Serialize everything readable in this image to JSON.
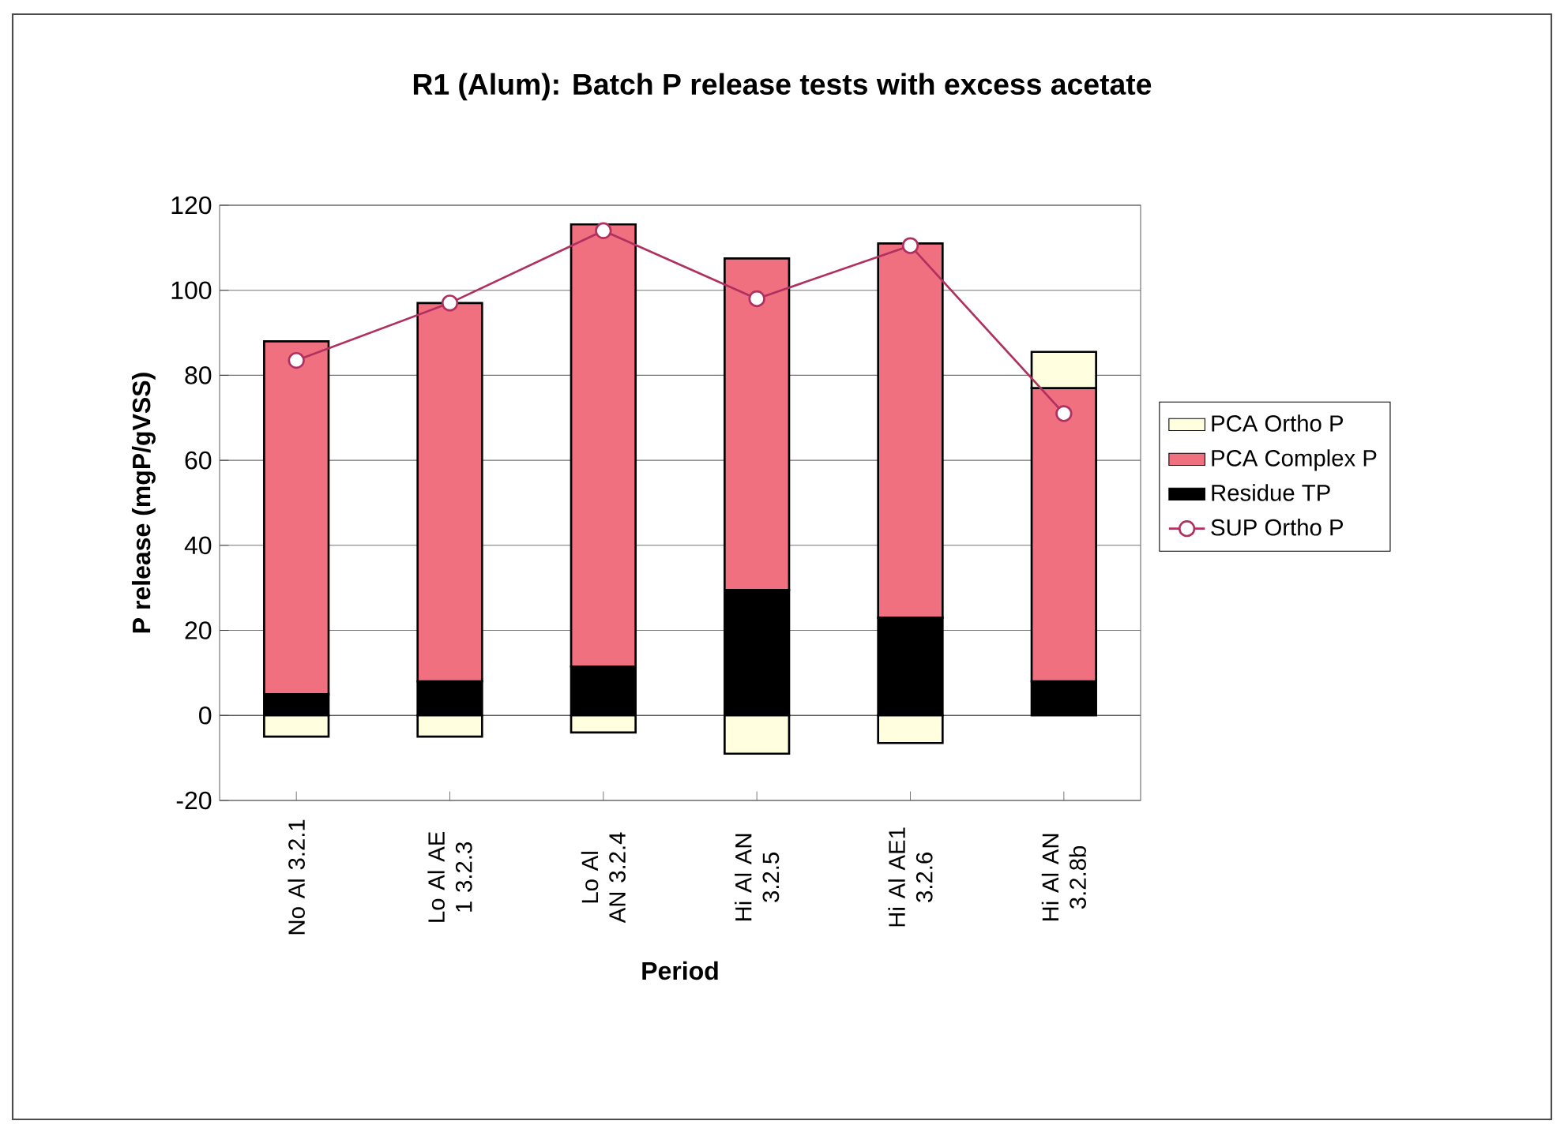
{
  "chart_data": {
    "type": "bar",
    "stacked": true,
    "title": "R1 (Alum): Batch P release tests with excess acetate",
    "xlabel": "Period",
    "ylabel": "P release (mgP/gVSS)",
    "categories": [
      "No Al  3.2.1",
      "Lo Al AE 1 3.2.3",
      "Lo Al AN 3.2.4",
      "Hi Al AN 3.2.5",
      "Hi Al AE1 3.2.6",
      "Hi Al AN 3.2.8b"
    ],
    "series": [
      {
        "name": "Residue TP",
        "color": "#000000",
        "values": [
          5,
          8,
          11.5,
          29.5,
          23,
          8
        ]
      },
      {
        "name": "PCA Complex P",
        "color": "#f07080",
        "values": [
          83,
          89,
          104,
          78,
          88,
          69
        ]
      },
      {
        "name": "PCA Ortho P",
        "color": "#ffffe0",
        "values": [
          -5,
          -5,
          -4,
          -9,
          -6.5,
          8.5
        ]
      },
      {
        "name": "SUP Ortho P",
        "type": "line",
        "color": "#b03060",
        "marker": "circle",
        "line_style": "solid",
        "values": [
          83.5,
          97,
          114,
          98,
          110.5,
          71
        ]
      }
    ],
    "ylim": [
      -20,
      120
    ],
    "yticks": [
      -20,
      0,
      20,
      40,
      60,
      80,
      100,
      120
    ],
    "grid": "y",
    "legend": "right"
  }
}
